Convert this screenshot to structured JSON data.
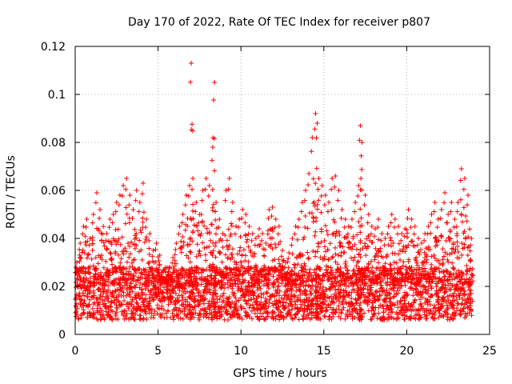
{
  "chart_data": {
    "type": "scatter",
    "title": "Day 170 of 2022, Rate Of TEC Index for receiver p807",
    "xlabel": "GPS time / hours",
    "ylabel": "ROTI / TECUs",
    "xlim": [
      0,
      25
    ],
    "ylim": [
      0,
      0.12
    ],
    "xticks": [
      0,
      5,
      10,
      15,
      20,
      25
    ],
    "xtick_labels": [
      "0",
      "5",
      "10",
      "15",
      "20",
      "25"
    ],
    "yticks": [
      0,
      0.02,
      0.04,
      0.06,
      0.08,
      0.1,
      0.12
    ],
    "ytick_labels": [
      "0",
      "0.02",
      "0.04",
      "0.06",
      "0.08",
      "0.1",
      "0.12"
    ],
    "grid": true,
    "marker": "+",
    "series": [
      {
        "name": "ROTI",
        "color": "#ff0000",
        "x": [
          0.0,
          0.2,
          0.4,
          0.6,
          0.8,
          1.0,
          1.2,
          1.4,
          1.6,
          1.8,
          2.0,
          2.2,
          2.4,
          2.6,
          2.8,
          3.0,
          3.2,
          3.4,
          3.6,
          3.8,
          4.0,
          4.2,
          4.4,
          4.6,
          4.8,
          5.0,
          5.2,
          5.4,
          5.6,
          5.8,
          6.0,
          6.2,
          6.4,
          6.6,
          6.8,
          6.9,
          7.0,
          7.2,
          7.4,
          7.6,
          7.8,
          8.0,
          8.2,
          8.3,
          8.4,
          8.6,
          8.8,
          9.0,
          9.2,
          9.4,
          9.6,
          9.8,
          10.0,
          10.2,
          10.4,
          10.6,
          10.8,
          11.0,
          11.2,
          11.4,
          11.6,
          11.8,
          12.0,
          12.2,
          12.4,
          12.6,
          12.8,
          13.0,
          13.2,
          13.4,
          13.6,
          13.8,
          14.0,
          14.2,
          14.4,
          14.5,
          14.6,
          14.8,
          15.0,
          15.2,
          15.4,
          15.6,
          15.8,
          16.0,
          16.2,
          16.4,
          16.6,
          16.8,
          17.0,
          17.1,
          17.2,
          17.4,
          17.6,
          17.8,
          18.0,
          18.2,
          18.4,
          18.6,
          18.8,
          19.0,
          19.2,
          19.4,
          19.6,
          19.8,
          20.0,
          20.2,
          20.4,
          20.6,
          20.8,
          21.0,
          21.2,
          21.4,
          21.6,
          21.8,
          22.0,
          22.2,
          22.4,
          22.6,
          22.8,
          23.0,
          23.2,
          23.4,
          23.6,
          23.8
        ],
        "y_upper": [
          0.03,
          0.038,
          0.045,
          0.048,
          0.04,
          0.05,
          0.059,
          0.052,
          0.045,
          0.042,
          0.048,
          0.05,
          0.055,
          0.058,
          0.062,
          0.065,
          0.058,
          0.052,
          0.06,
          0.055,
          0.063,
          0.048,
          0.042,
          0.035,
          0.038,
          0.033,
          0.026,
          0.024,
          0.028,
          0.032,
          0.038,
          0.045,
          0.05,
          0.058,
          0.062,
          0.113,
          0.065,
          0.055,
          0.05,
          0.06,
          0.065,
          0.062,
          0.078,
          0.105,
          0.055,
          0.048,
          0.042,
          0.06,
          0.065,
          0.055,
          0.045,
          0.048,
          0.052,
          0.05,
          0.045,
          0.042,
          0.04,
          0.044,
          0.042,
          0.038,
          0.052,
          0.053,
          0.048,
          0.045,
          0.035,
          0.03,
          0.034,
          0.04,
          0.045,
          0.048,
          0.055,
          0.06,
          0.067,
          0.082,
          0.092,
          0.088,
          0.065,
          0.062,
          0.058,
          0.055,
          0.065,
          0.066,
          0.06,
          0.052,
          0.048,
          0.045,
          0.048,
          0.055,
          0.062,
          0.087,
          0.08,
          0.058,
          0.05,
          0.045,
          0.044,
          0.048,
          0.042,
          0.04,
          0.045,
          0.05,
          0.048,
          0.045,
          0.042,
          0.044,
          0.052,
          0.048,
          0.045,
          0.04,
          0.038,
          0.042,
          0.045,
          0.05,
          0.055,
          0.048,
          0.052,
          0.059,
          0.05,
          0.055,
          0.048,
          0.055,
          0.069,
          0.065,
          0.058,
          0.04
        ]
      }
    ]
  }
}
